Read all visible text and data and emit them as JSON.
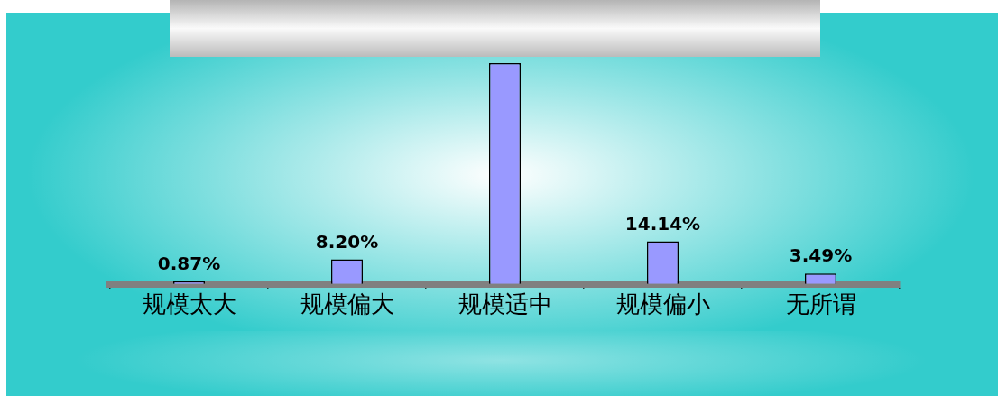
{
  "chart_data": {
    "type": "bar",
    "categories": [
      "规模太大",
      "规模偏大",
      "规模适中",
      "规模偏小",
      "无所谓"
    ],
    "values": [
      0.87,
      8.2,
      73.3,
      14.14,
      3.49
    ],
    "color": "#9999ff",
    "value_labels": [
      "0.87%",
      "8.20%",
      null,
      "14.14%",
      "3.49%"
    ]
  }
}
